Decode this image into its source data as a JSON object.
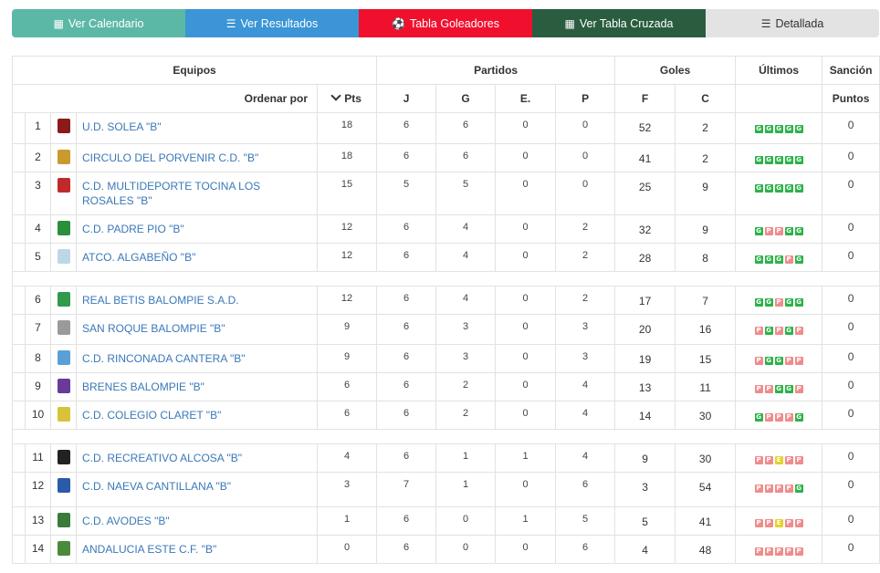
{
  "nav": {
    "calendario": "Ver Calendario",
    "resultados": "Ver Resultados",
    "goleadores": "Tabla Goleadores",
    "cruzada": "Ver Tabla Cruzada",
    "detallada": "Detallada"
  },
  "headers": {
    "equipos": "Equipos",
    "partidos": "Partidos",
    "goles": "Goles",
    "ultimos": "Últimos",
    "sancion": "Sanción",
    "ordenar": "Ordenar por",
    "pts": "Pts",
    "j": "J",
    "g": "G",
    "e": "E.",
    "p": "P",
    "f": "F",
    "c": "C",
    "puntos": "Puntos"
  },
  "colors": {
    "win": "#2db24a",
    "loss": "#f08c8c",
    "draw": "#e6d22a",
    "link": "#3a78b8"
  },
  "teams": [
    {
      "pos": "1",
      "name": "U.D. SOLEA \"B\"",
      "crest": "#8b1a1a",
      "pts": "18",
      "j": "6",
      "g": "6",
      "e": "0",
      "p": "0",
      "f": "52",
      "c": "2",
      "last": [
        "G",
        "G",
        "G",
        "G",
        "G"
      ],
      "sancion": "0"
    },
    {
      "pos": "2",
      "name": "CIRCULO DEL PORVENIR C.D. \"B\"",
      "crest": "#c99a2e",
      "pts": "18",
      "j": "6",
      "g": "6",
      "e": "0",
      "p": "0",
      "f": "41",
      "c": "2",
      "last": [
        "G",
        "G",
        "G",
        "G",
        "G"
      ],
      "sancion": "0"
    },
    {
      "pos": "3",
      "name": "C.D. MULTIDEPORTE TOCINA LOS ROSALES \"B\"",
      "crest": "#c02a2a",
      "pts": "15",
      "j": "5",
      "g": "5",
      "e": "0",
      "p": "0",
      "f": "25",
      "c": "9",
      "last": [
        "G",
        "G",
        "G",
        "G",
        "G"
      ],
      "sancion": "0"
    },
    {
      "pos": "4",
      "name": "C.D. PADRE PIO \"B\"",
      "crest": "#2a8f3a",
      "pts": "12",
      "j": "6",
      "g": "4",
      "e": "0",
      "p": "2",
      "f": "32",
      "c": "9",
      "last": [
        "G",
        "P",
        "P",
        "G",
        "G"
      ],
      "sancion": "0"
    },
    {
      "pos": "5",
      "name": "ATCO. ALGABEÑO \"B\"",
      "crest": "#bcd8e6",
      "pts": "12",
      "j": "6",
      "g": "4",
      "e": "0",
      "p": "2",
      "f": "28",
      "c": "8",
      "last": [
        "G",
        "G",
        "G",
        "P",
        "G"
      ],
      "sancion": "0"
    },
    {
      "pos": "6",
      "name": "REAL BETIS BALOMPIE S.A.D.",
      "crest": "#2e9a4a",
      "pts": "12",
      "j": "6",
      "g": "4",
      "e": "0",
      "p": "2",
      "f": "17",
      "c": "7",
      "last": [
        "G",
        "G",
        "P",
        "G",
        "G"
      ],
      "sancion": "0"
    },
    {
      "pos": "7",
      "name": "SAN ROQUE BALOMPIE \"B\"",
      "crest": "#9a9a9a",
      "pts": "9",
      "j": "6",
      "g": "3",
      "e": "0",
      "p": "3",
      "f": "20",
      "c": "16",
      "last": [
        "P",
        "G",
        "P",
        "G",
        "P"
      ],
      "sancion": "0"
    },
    {
      "pos": "8",
      "name": "C.D. RINCONADA CANTERA \"B\"",
      "crest": "#5aa0d8",
      "pts": "9",
      "j": "6",
      "g": "3",
      "e": "0",
      "p": "3",
      "f": "19",
      "c": "15",
      "last": [
        "P",
        "G",
        "G",
        "P",
        "P"
      ],
      "sancion": "0"
    },
    {
      "pos": "9",
      "name": "BRENES BALOMPIE \"B\"",
      "crest": "#6a3a9a",
      "pts": "6",
      "j": "6",
      "g": "2",
      "e": "0",
      "p": "4",
      "f": "13",
      "c": "11",
      "last": [
        "P",
        "P",
        "G",
        "G",
        "P"
      ],
      "sancion": "0"
    },
    {
      "pos": "10",
      "name": "C.D. COLEGIO CLARET \"B\"",
      "crest": "#d8c23a",
      "pts": "6",
      "j": "6",
      "g": "2",
      "e": "0",
      "p": "4",
      "f": "14",
      "c": "30",
      "last": [
        "G",
        "P",
        "P",
        "P",
        "G"
      ],
      "sancion": "0"
    },
    {
      "pos": "11",
      "name": "C.D. RECREATIVO ALCOSA \"B\"",
      "crest": "#222222",
      "pts": "4",
      "j": "6",
      "g": "1",
      "e": "1",
      "p": "4",
      "f": "9",
      "c": "30",
      "last": [
        "P",
        "P",
        "E",
        "P",
        "P"
      ],
      "sancion": "0"
    },
    {
      "pos": "12",
      "name": "C.D. NAEVA CANTILLANA \"B\"",
      "crest": "#2a5aa8",
      "pts": "3",
      "j": "7",
      "g": "1",
      "e": "0",
      "p": "6",
      "f": "3",
      "c": "54",
      "last": [
        "P",
        "P",
        "P",
        "P",
        "G"
      ],
      "sancion": "0"
    },
    {
      "pos": "13",
      "name": "C.D. AVODES \"B\"",
      "crest": "#3a7a3a",
      "pts": "1",
      "j": "6",
      "g": "0",
      "e": "1",
      "p": "5",
      "f": "5",
      "c": "41",
      "last": [
        "P",
        "P",
        "E",
        "P",
        "P"
      ],
      "sancion": "0"
    },
    {
      "pos": "14",
      "name": "ANDALUCIA ESTE C.F. \"B\"",
      "crest": "#4a8a3a",
      "pts": "0",
      "j": "6",
      "g": "0",
      "e": "0",
      "p": "6",
      "f": "4",
      "c": "48",
      "last": [
        "P",
        "P",
        "P",
        "P",
        "P"
      ],
      "sancion": "0"
    }
  ]
}
